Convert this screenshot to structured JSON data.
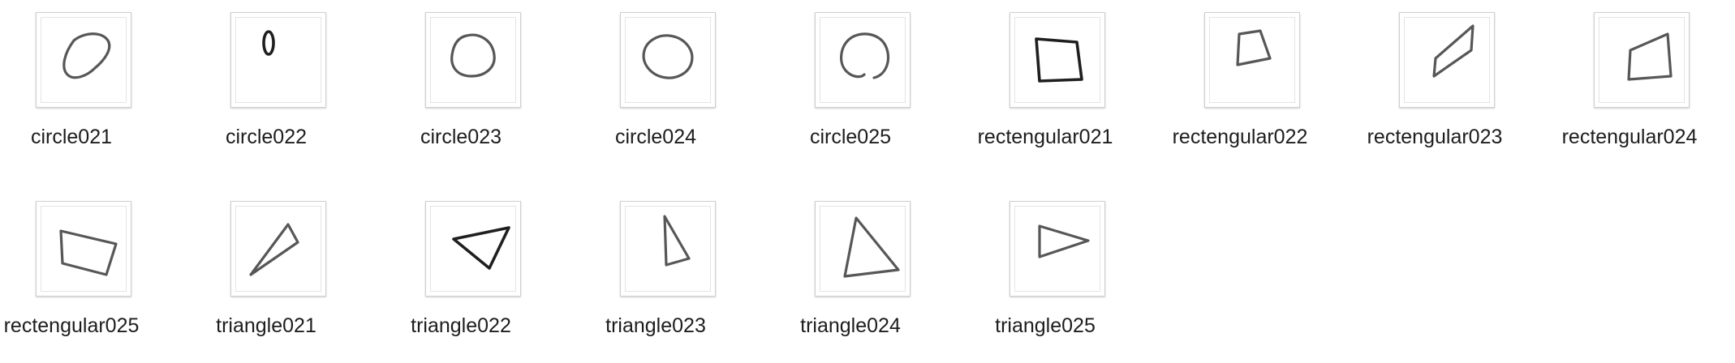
{
  "files": [
    {
      "name": "circle021"
    },
    {
      "name": "circle022"
    },
    {
      "name": "circle023"
    },
    {
      "name": "circle024"
    },
    {
      "name": "circle025"
    },
    {
      "name": "rectengular021"
    },
    {
      "name": "rectengular022"
    },
    {
      "name": "rectengular023"
    },
    {
      "name": "rectengular024"
    },
    {
      "name": "rectengular025"
    },
    {
      "name": "triangle021"
    },
    {
      "name": "triangle022"
    },
    {
      "name": "triangle023"
    },
    {
      "name": "triangle024"
    },
    {
      "name": "triangle025"
    }
  ]
}
